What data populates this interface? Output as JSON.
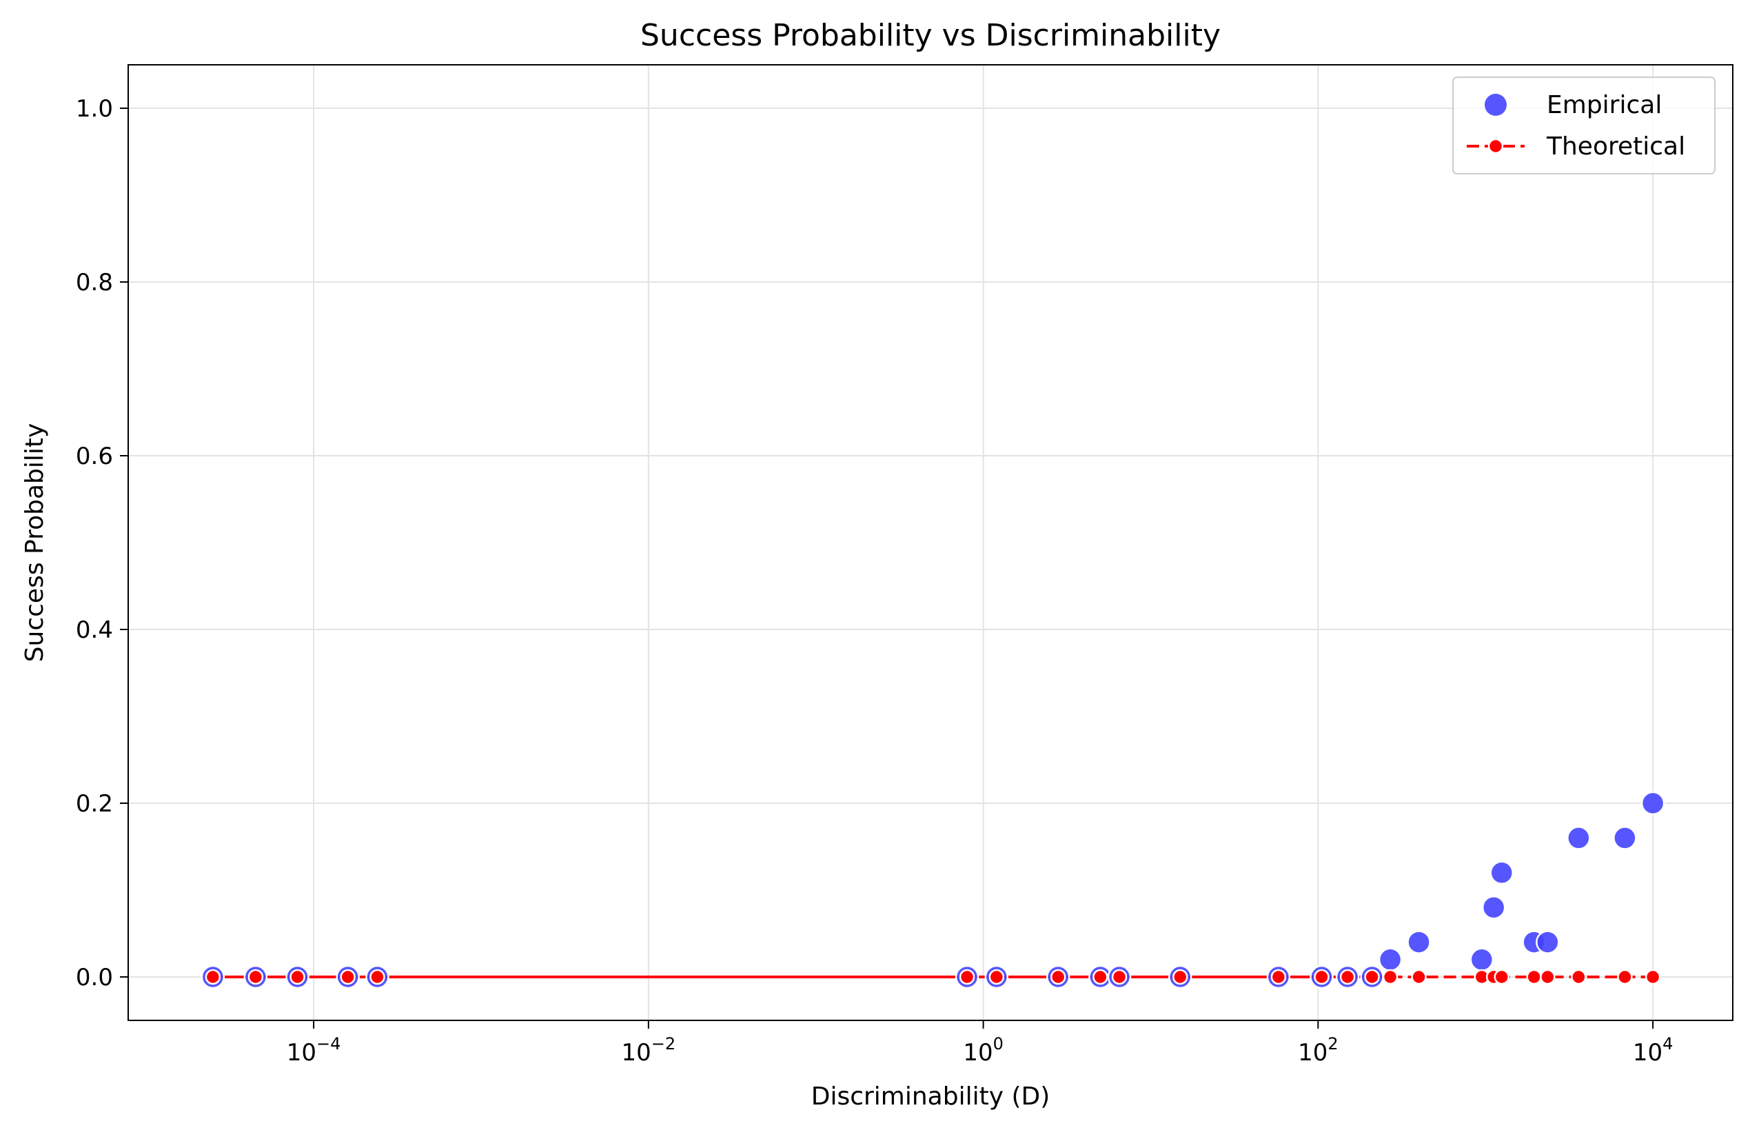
{
  "chart_data": {
    "type": "scatter",
    "title": "Success Probability vs Discriminability",
    "xlabel": "Discriminability (D)",
    "ylabel": "Success Probability",
    "xscale": "log",
    "xlim": [
      7.8e-06,
      30000
    ],
    "ylim": [
      -0.05,
      1.05
    ],
    "grid": true,
    "legend_position": "top-right",
    "x_ticks": [
      {
        "value": 0.0001,
        "base": "10",
        "exp": "−4"
      },
      {
        "value": 0.01,
        "base": "10",
        "exp": "−2"
      },
      {
        "value": 1,
        "base": "10",
        "exp": "0"
      },
      {
        "value": 100,
        "base": "10",
        "exp": "2"
      },
      {
        "value": 10000,
        "base": "10",
        "exp": "4"
      }
    ],
    "y_ticks": [
      {
        "value": 0.0,
        "label": "0.0"
      },
      {
        "value": 0.2,
        "label": "0.2"
      },
      {
        "value": 0.4,
        "label": "0.4"
      },
      {
        "value": 0.6,
        "label": "0.6"
      },
      {
        "value": 0.8,
        "label": "0.8"
      },
      {
        "value": 1.0,
        "label": "1.0"
      }
    ],
    "series": [
      {
        "name": "Empirical",
        "kind": "scatter",
        "color": "#4444ff",
        "points": [
          [
            2.5e-05,
            0.0
          ],
          [
            4.5e-05,
            0.0
          ],
          [
            8e-05,
            0.0
          ],
          [
            0.00016,
            0.0
          ],
          [
            0.00024,
            0.0
          ],
          [
            0.8,
            0.0
          ],
          [
            1.2,
            0.0
          ],
          [
            2.8,
            0.0
          ],
          [
            5.0,
            0.0
          ],
          [
            6.5,
            0.0
          ],
          [
            15.0,
            0.0
          ],
          [
            58.0,
            0.0
          ],
          [
            105.0,
            0.0
          ],
          [
            150.0,
            0.0
          ],
          [
            210.0,
            0.0
          ],
          [
            270.0,
            0.02
          ],
          [
            400.0,
            0.04
          ],
          [
            950.0,
            0.02
          ],
          [
            1120.0,
            0.08
          ],
          [
            1250.0,
            0.12
          ],
          [
            1950.0,
            0.04
          ],
          [
            2350.0,
            0.04
          ],
          [
            3600.0,
            0.16
          ],
          [
            6800.0,
            0.16
          ],
          [
            10000.0,
            0.2
          ]
        ]
      },
      {
        "name": "Theoretical",
        "kind": "line",
        "color": "#ff0000",
        "points": [
          [
            2.5e-05,
            0.0
          ],
          [
            4.5e-05,
            0.0
          ],
          [
            8e-05,
            0.0
          ],
          [
            0.00016,
            0.0
          ],
          [
            0.00024,
            0.0
          ],
          [
            0.8,
            0.0
          ],
          [
            1.2,
            0.0
          ],
          [
            2.8,
            0.0
          ],
          [
            5.0,
            0.0
          ],
          [
            6.5,
            0.0
          ],
          [
            15.0,
            0.0
          ],
          [
            58.0,
            0.0
          ],
          [
            105.0,
            0.0
          ],
          [
            150.0,
            0.0
          ],
          [
            210.0,
            0.0
          ],
          [
            270.0,
            0.0
          ],
          [
            400.0,
            0.0
          ],
          [
            950.0,
            0.0
          ],
          [
            1120.0,
            0.0
          ],
          [
            1250.0,
            0.0
          ],
          [
            1950.0,
            0.0
          ],
          [
            2350.0,
            0.0
          ],
          [
            3600.0,
            0.0
          ],
          [
            6800.0,
            0.0
          ],
          [
            10000.0,
            0.0
          ]
        ]
      }
    ]
  },
  "colors": {
    "empirical": "#4444ff",
    "theoretical": "#ff0000",
    "grid": "#e3e3e3",
    "axis": "#000000",
    "legend_border": "#cccccc"
  }
}
